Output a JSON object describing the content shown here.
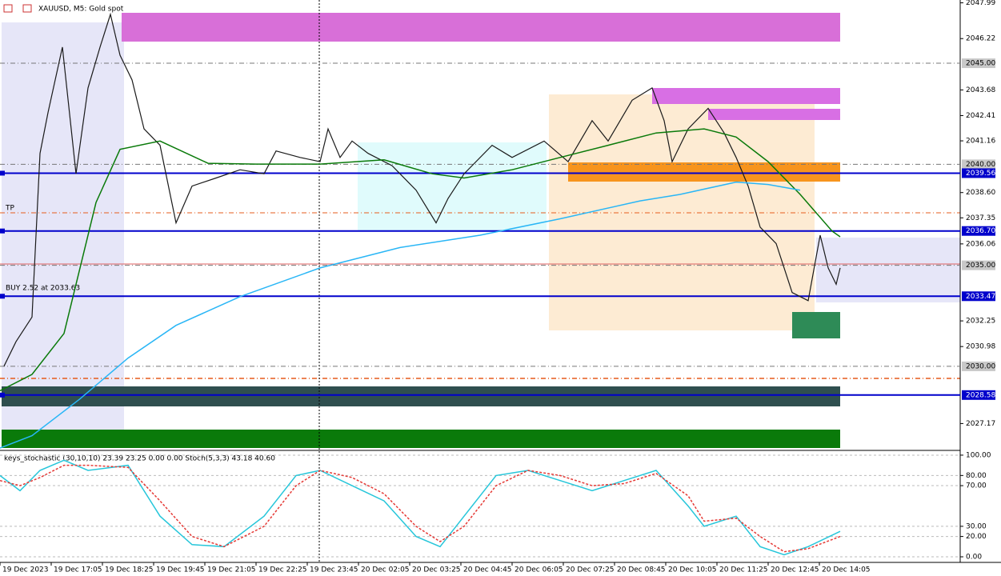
{
  "chart_data": [
    {
      "type": "line",
      "title": "XAUUSD, M5:  Gold spot",
      "annotations": [
        "TP",
        "BUY 2.52 at 2033.63"
      ],
      "xlim": [
        0,
        300
      ],
      "ylim": [
        2025.88,
        2048.13
      ],
      "xticks": [
        {
          "value": 0,
          "label": "19 Dec 2023"
        },
        {
          "value": 16,
          "label": "19 Dec 17:05"
        },
        {
          "value": 32,
          "label": "19 Dec 18:25"
        },
        {
          "value": 48,
          "label": "19 Dec 19:45"
        },
        {
          "value": 64,
          "label": "19 Dec 21:05"
        },
        {
          "value": 80,
          "label": "19 Dec 22:25"
        },
        {
          "value": 96,
          "label": "19 Dec 23:45"
        },
        {
          "value": 112,
          "label": "20 Dec 02:05"
        },
        {
          "value": 128,
          "label": "20 Dec 03:25"
        },
        {
          "value": 144,
          "label": "20 Dec 04:45"
        },
        {
          "value": 160,
          "label": "20 Dec 06:05"
        },
        {
          "value": 176,
          "label": "20 Dec 07:25"
        },
        {
          "value": 192,
          "label": "20 Dec 08:45"
        },
        {
          "value": 208,
          "label": "20 Dec 10:05"
        },
        {
          "value": 224,
          "label": "20 Dec 11:25"
        },
        {
          "value": 240,
          "label": "20 Dec 12:45"
        },
        {
          "value": 256,
          "label": "20 Dec 14:05"
        }
      ],
      "yticks": [
        2047.99,
        2046.22,
        2043.68,
        2042.41,
        2041.16,
        {
          "value": 2038.6,
          "label": "2038.60"
        },
        2037.35,
        2036.06,
        2032.25,
        2030.98,
        2027.17
      ],
      "marked_levels": [
        {
          "value": 2045,
          "label": "2045.00"
        },
        {
          "value": 2040,
          "label": "2040.00"
        },
        {
          "value": 2035,
          "label": "2035.00"
        },
        {
          "value": 2030,
          "label": "2030.00"
        }
      ],
      "levels": [
        {
          "value": 2039.56,
          "label": "2039.56"
        },
        {
          "value": 2036.7,
          "label": "2036.70"
        },
        2033.47,
        2028.58
      ],
      "level_color": "#0000cc",
      "series": [
        {
          "color": "#1a1a1a",
          "x": [
            1.25,
            5,
            10,
            11.25,
            12.5,
            15,
            19.5,
            23.75,
            27.5,
            31.25,
            34.5,
            37.5,
            41.25,
            45,
            50,
            55,
            60,
            67.5,
            75,
            82.5,
            86.25,
            93.75,
            100,
            102.5,
            106.25,
            110,
            115,
            122.5,
            130,
            136.25,
            140,
            145,
            153.75,
            160,
            170,
            177.5,
            185,
            190,
            197.5,
            203.75,
            207.5,
            210,
            215,
            221.25,
            226.25,
            230,
            233.75,
            237.5,
            242.5,
            247.5,
            252.5,
            256.25,
            258.75,
            261.25,
            262.5
          ],
          "values": [
            2030.01,
            2031.22,
            2032.44,
            2036.49,
            2040.54,
            2042.56,
            2045.8,
            2039.53,
            2043.78,
            2045.8,
            2047.42,
            2045.4,
            2044.18,
            2041.75,
            2040.94,
            2037.1,
            2038.92,
            2039.32,
            2039.73,
            2039.53,
            2040.66,
            2040.34,
            2040.13,
            2041.75,
            2040.34,
            2041.15,
            2040.54,
            2039.93,
            2038.72,
            2037.1,
            2038.31,
            2039.53,
            2040.94,
            2040.34,
            2041.15,
            2040.13,
            2042.16,
            2041.15,
            2043.17,
            2043.78,
            2042.16,
            2040.13,
            2041.75,
            2042.77,
            2041.55,
            2040.34,
            2038.92,
            2036.89,
            2036.08,
            2033.65,
            2033.25,
            2036.49,
            2034.87,
            2034.06,
            2034.87
          ]
        },
        {
          "color": "#0a7a0a",
          "x": [
            0,
            10,
            20,
            30,
            37.5,
            50,
            65,
            80,
            100,
            120,
            135,
            145,
            160,
            175,
            190,
            205,
            220,
            230,
            240,
            250,
            260,
            262.5
          ],
          "values": [
            2028.79,
            2029.6,
            2031.63,
            2038.11,
            2040.74,
            2041.15,
            2040.05,
            2040.01,
            2040.01,
            2040.22,
            2039.53,
            2039.32,
            2039.73,
            2040.34,
            2040.94,
            2041.55,
            2041.75,
            2041.35,
            2040.13,
            2038.51,
            2036.69,
            2036.41
          ]
        },
        {
          "color": "#29b6f6",
          "x": [
            0,
            10,
            25,
            40,
            55,
            75,
            100,
            125,
            150,
            175,
            200,
            212.5,
            230,
            240,
            250
          ],
          "values": [
            2025.96,
            2026.57,
            2028.39,
            2030.41,
            2032.03,
            2033.45,
            2034.87,
            2035.88,
            2036.49,
            2037.3,
            2038.19,
            2038.51,
            2039.12,
            2039.0,
            2038.72
          ]
        }
      ]
    },
    {
      "type": "line",
      "title": "keys_stochastic (30,10,10) 23.39 23.25 0.00 0.00 Stoch(5,3,3) 43.18 40.60",
      "xlim": [
        0,
        300
      ],
      "ylim": [
        -5.5,
        103.1
      ],
      "yticks": [
        {
          "value": 100,
          "label": "100.00"
        },
        {
          "value": 80,
          "label": "80.00"
        },
        {
          "value": 70,
          "label": "70.00"
        },
        {
          "value": 30,
          "label": "30.00"
        },
        {
          "value": 20,
          "label": "20.00"
        },
        {
          "value": 0,
          "label": "0.00"
        }
      ],
      "series": [
        {
          "color": "#26c6da",
          "dashed": false,
          "x": [
            0,
            6.25,
            12.5,
            20,
            27.5,
            40,
            50,
            60,
            70,
            82.5,
            92.5,
            100,
            110,
            120,
            130,
            137.5,
            145,
            155,
            165,
            175,
            185,
            195,
            205,
            215,
            220,
            230,
            237.5,
            245,
            252.5,
            262.5
          ],
          "values": [
            80,
            65,
            85,
            95,
            85,
            90,
            40,
            12,
            10,
            40,
            80,
            85,
            70,
            55,
            20,
            10,
            40,
            80,
            85,
            75,
            65,
            75,
            85,
            50,
            30,
            40,
            10,
            2,
            10,
            25
          ]
        },
        {
          "color": "#e53935",
          "dashed": true,
          "x": [
            0,
            6.25,
            12.5,
            20,
            27.5,
            40,
            50,
            60,
            70,
            82.5,
            92.5,
            100,
            110,
            120,
            130,
            137.5,
            145,
            155,
            165,
            175,
            185,
            195,
            205,
            215,
            220,
            230,
            237.5,
            245,
            252.5,
            262.5
          ],
          "values": [
            75,
            70,
            78,
            90,
            90,
            88,
            55,
            20,
            10,
            30,
            70,
            85,
            78,
            62,
            30,
            15,
            30,
            70,
            85,
            80,
            70,
            72,
            82,
            60,
            35,
            38,
            20,
            5,
            8,
            20
          ]
        }
      ]
    }
  ]
}
